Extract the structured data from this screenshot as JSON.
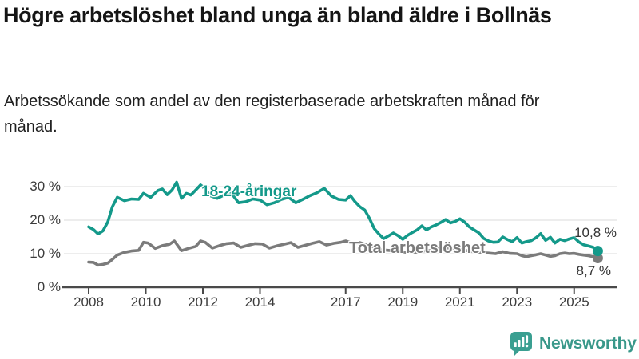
{
  "header": {
    "title": "Högre arbetslöshet bland unga än bland äldre i Bollnäs",
    "subtitle": "Arbetssökande som andel av den registerbaserade arbetskraften månad för månad."
  },
  "footer": {
    "brand": "Newsworthy",
    "logo_icon": "bar-chart-speech-bubble-icon"
  },
  "colors": {
    "young_line": "#14998a",
    "total_line": "#7b7b7b",
    "axis": "#4a4a4a",
    "grid": "#e2e2e2",
    "tick_label": "#3c3c3c",
    "value_label": "#333333",
    "brand_teal": "#3a9f91",
    "brand_text": "#39988a",
    "title_text": "#151515"
  },
  "chart_data": {
    "type": "line",
    "title": "Högre arbetslöshet bland unga än bland äldre i Bollnäs",
    "subtitle": "Arbetssökande som andel av den registerbaserade arbetskraften månad för månad.",
    "xlabel": "",
    "ylabel": "",
    "unit": "%",
    "grid": "horizontal",
    "legend_position": "inline",
    "x_axis": {
      "ticks": [
        2008,
        2010,
        2012,
        2014,
        2017,
        2019,
        2021,
        2023,
        2025
      ],
      "range": [
        2007.6,
        2026.2
      ]
    },
    "y_axis": {
      "ticks": [
        {
          "value": 0,
          "label": "0 %"
        },
        {
          "value": 10,
          "label": "10 %"
        },
        {
          "value": 20,
          "label": "20 %"
        },
        {
          "value": 30,
          "label": "30 %"
        }
      ],
      "range": [
        0,
        33
      ]
    },
    "series": [
      {
        "name": "18-24-åringar",
        "inline_label": "18-24-åringar",
        "color": "#14998a",
        "end_value": 10.8,
        "end_label": "10,8 %",
        "points": [
          [
            2008.0,
            18.0
          ],
          [
            2008.17,
            17.2
          ],
          [
            2008.33,
            15.9
          ],
          [
            2008.5,
            16.8
          ],
          [
            2008.67,
            19.5
          ],
          [
            2008.83,
            24.0
          ],
          [
            2009.0,
            26.8
          ],
          [
            2009.25,
            25.8
          ],
          [
            2009.5,
            26.3
          ],
          [
            2009.75,
            26.2
          ],
          [
            2009.92,
            28.0
          ],
          [
            2010.17,
            26.8
          ],
          [
            2010.42,
            28.8
          ],
          [
            2010.58,
            29.3
          ],
          [
            2010.75,
            27.6
          ],
          [
            2010.92,
            29.0
          ],
          [
            2011.08,
            31.3
          ],
          [
            2011.25,
            26.5
          ],
          [
            2011.42,
            28.0
          ],
          [
            2011.58,
            27.5
          ],
          [
            2011.75,
            29.0
          ],
          [
            2011.92,
            30.5
          ],
          [
            2012.08,
            29.5
          ],
          [
            2012.25,
            27.3
          ],
          [
            2012.5,
            26.5
          ],
          [
            2012.75,
            27.5
          ],
          [
            2013.0,
            28.0
          ],
          [
            2013.25,
            25.2
          ],
          [
            2013.5,
            25.5
          ],
          [
            2013.75,
            26.3
          ],
          [
            2014.0,
            26.0
          ],
          [
            2014.25,
            24.6
          ],
          [
            2014.5,
            25.2
          ],
          [
            2014.75,
            26.2
          ],
          [
            2015.0,
            26.8
          ],
          [
            2015.25,
            25.2
          ],
          [
            2015.5,
            26.2
          ],
          [
            2015.75,
            27.3
          ],
          [
            2016.0,
            28.2
          ],
          [
            2016.25,
            29.5
          ],
          [
            2016.5,
            27.2
          ],
          [
            2016.75,
            26.2
          ],
          [
            2017.0,
            26.0
          ],
          [
            2017.17,
            27.3
          ],
          [
            2017.33,
            25.5
          ],
          [
            2017.5,
            24.0
          ],
          [
            2017.67,
            23.0
          ],
          [
            2017.83,
            20.6
          ],
          [
            2018.0,
            17.5
          ],
          [
            2018.17,
            15.8
          ],
          [
            2018.33,
            14.5
          ],
          [
            2018.5,
            15.3
          ],
          [
            2018.67,
            16.2
          ],
          [
            2018.83,
            15.4
          ],
          [
            2019.0,
            14.3
          ],
          [
            2019.17,
            15.5
          ],
          [
            2019.33,
            16.3
          ],
          [
            2019.5,
            17.1
          ],
          [
            2019.67,
            18.3
          ],
          [
            2019.83,
            17.1
          ],
          [
            2020.0,
            18.0
          ],
          [
            2020.17,
            18.6
          ],
          [
            2020.33,
            19.3
          ],
          [
            2020.5,
            20.2
          ],
          [
            2020.67,
            19.2
          ],
          [
            2020.83,
            19.6
          ],
          [
            2021.0,
            20.4
          ],
          [
            2021.17,
            19.4
          ],
          [
            2021.33,
            18.0
          ],
          [
            2021.5,
            17.1
          ],
          [
            2021.67,
            16.2
          ],
          [
            2021.83,
            14.6
          ],
          [
            2022.0,
            13.8
          ],
          [
            2022.17,
            13.4
          ],
          [
            2022.33,
            13.5
          ],
          [
            2022.5,
            15.0
          ],
          [
            2022.67,
            14.2
          ],
          [
            2022.83,
            13.6
          ],
          [
            2023.0,
            14.8
          ],
          [
            2023.17,
            13.2
          ],
          [
            2023.33,
            13.6
          ],
          [
            2023.5,
            13.9
          ],
          [
            2023.67,
            14.8
          ],
          [
            2023.83,
            16.0
          ],
          [
            2024.0,
            14.0
          ],
          [
            2024.17,
            14.9
          ],
          [
            2024.33,
            13.2
          ],
          [
            2024.5,
            14.3
          ],
          [
            2024.67,
            13.9
          ],
          [
            2024.83,
            14.4
          ],
          [
            2025.0,
            14.8
          ],
          [
            2025.17,
            13.5
          ],
          [
            2025.33,
            12.7
          ],
          [
            2025.5,
            12.3
          ],
          [
            2025.67,
            11.9
          ],
          [
            2025.83,
            10.8
          ]
        ]
      },
      {
        "name": "Total arbetslöshet",
        "inline_label": "Total arbetslöshet",
        "color": "#7b7b7b",
        "end_value": 8.7,
        "end_label": "8,7 %",
        "points": [
          [
            2008.0,
            7.5
          ],
          [
            2008.17,
            7.4
          ],
          [
            2008.33,
            6.6
          ],
          [
            2008.5,
            6.8
          ],
          [
            2008.67,
            7.2
          ],
          [
            2008.83,
            8.3
          ],
          [
            2009.0,
            9.6
          ],
          [
            2009.25,
            10.4
          ],
          [
            2009.5,
            10.8
          ],
          [
            2009.75,
            11.0
          ],
          [
            2009.92,
            13.4
          ],
          [
            2010.08,
            13.2
          ],
          [
            2010.33,
            11.6
          ],
          [
            2010.58,
            12.4
          ],
          [
            2010.83,
            12.8
          ],
          [
            2011.0,
            13.8
          ],
          [
            2011.25,
            10.9
          ],
          [
            2011.5,
            11.6
          ],
          [
            2011.75,
            12.2
          ],
          [
            2011.92,
            13.8
          ],
          [
            2012.08,
            13.4
          ],
          [
            2012.33,
            11.7
          ],
          [
            2012.58,
            12.4
          ],
          [
            2012.83,
            13.0
          ],
          [
            2013.08,
            13.2
          ],
          [
            2013.33,
            11.9
          ],
          [
            2013.58,
            12.5
          ],
          [
            2013.83,
            13.0
          ],
          [
            2014.08,
            12.9
          ],
          [
            2014.33,
            11.7
          ],
          [
            2014.58,
            12.3
          ],
          [
            2014.83,
            12.8
          ],
          [
            2015.08,
            13.3
          ],
          [
            2015.33,
            11.9
          ],
          [
            2015.58,
            12.5
          ],
          [
            2015.83,
            13.1
          ],
          [
            2016.08,
            13.6
          ],
          [
            2016.33,
            12.6
          ],
          [
            2016.58,
            13.1
          ],
          [
            2016.83,
            13.4
          ],
          [
            2017.0,
            13.8
          ],
          [
            2017.25,
            13.1
          ],
          [
            2017.5,
            13.3
          ],
          [
            2017.75,
            12.6
          ],
          [
            2018.0,
            12.0
          ],
          [
            2018.25,
            11.2
          ],
          [
            2018.5,
            11.0
          ],
          [
            2018.75,
            10.8
          ],
          [
            2019.0,
            10.6
          ],
          [
            2019.25,
            10.2
          ],
          [
            2019.5,
            10.4
          ],
          [
            2019.75,
            10.8
          ],
          [
            2020.0,
            11.0
          ],
          [
            2020.25,
            11.6
          ],
          [
            2020.5,
            11.8
          ],
          [
            2020.75,
            11.5
          ],
          [
            2021.0,
            11.3
          ],
          [
            2021.25,
            10.9
          ],
          [
            2021.5,
            10.6
          ],
          [
            2021.75,
            10.3
          ],
          [
            2022.0,
            10.2
          ],
          [
            2022.25,
            10.0
          ],
          [
            2022.5,
            10.6
          ],
          [
            2022.75,
            10.1
          ],
          [
            2023.0,
            10.0
          ],
          [
            2023.17,
            9.4
          ],
          [
            2023.33,
            9.1
          ],
          [
            2023.5,
            9.4
          ],
          [
            2023.67,
            9.7
          ],
          [
            2023.83,
            10.0
          ],
          [
            2024.0,
            9.6
          ],
          [
            2024.17,
            9.2
          ],
          [
            2024.33,
            9.4
          ],
          [
            2024.5,
            10.0
          ],
          [
            2024.67,
            10.2
          ],
          [
            2024.83,
            10.0
          ],
          [
            2025.0,
            10.1
          ],
          [
            2025.17,
            9.8
          ],
          [
            2025.33,
            9.6
          ],
          [
            2025.5,
            9.4
          ],
          [
            2025.67,
            9.1
          ],
          [
            2025.83,
            8.7
          ]
        ]
      }
    ]
  }
}
